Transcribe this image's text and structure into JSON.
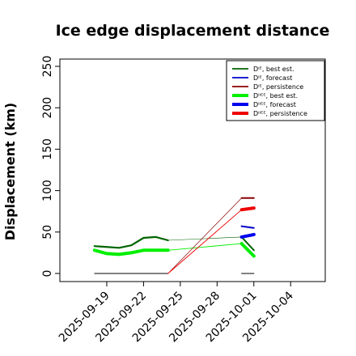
{
  "chart_data": {
    "type": "line",
    "title": "Ice edge displacement distance",
    "ylabel": "Displacement (km)",
    "xlabel": "",
    "ylim": [
      0,
      250
    ],
    "yticks": [
      0,
      50,
      100,
      150,
      200,
      250
    ],
    "xticks": [
      {
        "label": "2025-09-19",
        "date": "2025-09-19",
        "color": "#000000"
      },
      {
        "label": "2025-09-22",
        "date": "2025-09-22",
        "color": "#000000"
      },
      {
        "label": "2025-09-25",
        "date": "2025-09-25",
        "color": "#1a8a1a"
      },
      {
        "label": "2025-09-28",
        "date": "2025-09-28",
        "color": "#000000"
      },
      {
        "label": "2025-10-01",
        "date": "2025-10-01",
        "color": "#000000"
      },
      {
        "label": "2025-10-04",
        "date": "2025-10-04",
        "color": "#000000"
      }
    ],
    "xrange": [
      "2025-09-16",
      "2025-10-06"
    ],
    "grid": false,
    "legend_position": "top-right",
    "legend": [
      {
        "label": "Dᴵᴱ, best est.",
        "color": "#006400",
        "width": "thin"
      },
      {
        "label": "Dᴵᴱ, forecast",
        "color": "#0000cd",
        "width": "thin"
      },
      {
        "label": "Dᴵᴱ, persistence",
        "color": "#8b0000",
        "width": "thin"
      },
      {
        "label": "Dᴵᴵᴱᴱ, best est.",
        "color": "#00ee00",
        "width": "thick"
      },
      {
        "label": "Dᴵᴵᴱᴱ, forecast",
        "color": "#0000ee",
        "width": "thick"
      },
      {
        "label": "Dᴵᴵᴱᴱ, persistence",
        "color": "#ee0000",
        "width": "thick"
      }
    ],
    "series": [
      {
        "key": "D_IE_best_est",
        "color": "#006400",
        "width": 2.2,
        "points": [
          [
            "2025-09-18",
            33
          ],
          [
            "2025-09-20",
            31
          ],
          [
            "2025-09-21",
            34
          ],
          [
            "2025-09-22",
            43
          ],
          [
            "2025-09-23",
            44
          ],
          [
            "2025-09-24",
            40
          ]
        ]
      },
      {
        "key": "D_IIEE_best_est",
        "color": "#00ee00",
        "width": 4,
        "points": [
          [
            "2025-09-18",
            28
          ],
          [
            "2025-09-19",
            24
          ],
          [
            "2025-09-20",
            23
          ],
          [
            "2025-09-21",
            25
          ],
          [
            "2025-09-22",
            28
          ],
          [
            "2025-09-23",
            28
          ],
          [
            "2025-09-24",
            28
          ]
        ]
      },
      {
        "key": "D_IE_best_est_extension",
        "color": "#006400",
        "width": 0.6,
        "points": [
          [
            "2025-09-24",
            40
          ],
          [
            "2025-09-30",
            44
          ]
        ]
      },
      {
        "key": "D_IIEE_best_est_extension",
        "color": "#00ee00",
        "width": 0.9,
        "points": [
          [
            "2025-09-24",
            28
          ],
          [
            "2025-09-30",
            36
          ]
        ]
      },
      {
        "key": "D_IE_best_est_end",
        "color": "#006400",
        "width": 2,
        "points": [
          [
            "2025-09-30",
            44
          ],
          [
            "2025-10-01",
            28
          ]
        ]
      },
      {
        "key": "D_IIEE_best_est_end",
        "color": "#00ee00",
        "width": 4,
        "points": [
          [
            "2025-09-30",
            36
          ],
          [
            "2025-10-01",
            21
          ]
        ]
      },
      {
        "key": "D_IE_persistence_zero",
        "color": "#000000",
        "width": 1,
        "points": [
          [
            "2025-09-18",
            0
          ],
          [
            "2025-09-24",
            0
          ]
        ]
      },
      {
        "key": "D_IE_persistence_zero_end",
        "color": "#000000",
        "width": 1,
        "points": [
          [
            "2025-09-30",
            0
          ],
          [
            "2025-10-01",
            0
          ]
        ]
      },
      {
        "key": "D_IE_persistence_rise",
        "color": "#8b0000",
        "width": 0.7,
        "points": [
          [
            "2025-09-24",
            0
          ],
          [
            "2025-09-30",
            91
          ]
        ]
      },
      {
        "key": "D_IIEE_persistence_rise",
        "color": "#ee0000",
        "width": 0.9,
        "points": [
          [
            "2025-09-24",
            0
          ],
          [
            "2025-09-30",
            77
          ]
        ]
      },
      {
        "key": "D_IE_persistence",
        "color": "#8b0000",
        "width": 2,
        "points": [
          [
            "2025-09-30",
            91
          ],
          [
            "2025-10-01",
            91
          ]
        ]
      },
      {
        "key": "D_IIEE_persistence",
        "color": "#ee0000",
        "width": 4,
        "points": [
          [
            "2025-09-30",
            77
          ],
          [
            "2025-10-01",
            79
          ]
        ]
      },
      {
        "key": "D_IE_forecast",
        "color": "#0000cd",
        "width": 2,
        "points": [
          [
            "2025-09-30",
            57
          ],
          [
            "2025-10-01",
            55
          ]
        ]
      },
      {
        "key": "D_IIEE_forecast",
        "color": "#0000ee",
        "width": 4,
        "points": [
          [
            "2025-09-30",
            44
          ],
          [
            "2025-10-01",
            47
          ]
        ]
      }
    ]
  }
}
